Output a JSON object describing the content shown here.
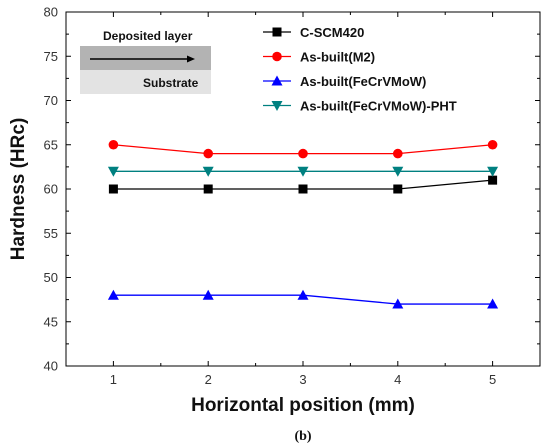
{
  "chart_data": {
    "type": "line",
    "xlabel": "Horizontal position (mm)",
    "ylabel": "Hardness (HRc)",
    "x": [
      1,
      2,
      3,
      4,
      5
    ],
    "xlim": [
      0.5,
      5.5
    ],
    "ylim": [
      40,
      80
    ],
    "xticks": [
      "1",
      "2",
      "3",
      "4",
      "5"
    ],
    "yticks": [
      "40",
      "45",
      "50",
      "55",
      "60",
      "65",
      "70",
      "75",
      "80"
    ],
    "grid": false,
    "legend_position": "top-right",
    "series": [
      {
        "name": "C-SCM420",
        "values": [
          60,
          60,
          60,
          60,
          61
        ],
        "color": "#000000",
        "marker": "square"
      },
      {
        "name": "As-built(M2)",
        "values": [
          65,
          64,
          64,
          64,
          65
        ],
        "color": "#ff0000",
        "marker": "circle"
      },
      {
        "name": "As-built(FeCrVMoW)",
        "values": [
          48,
          48,
          48,
          47,
          47
        ],
        "color": "#0000ff",
        "marker": "triangle-up"
      },
      {
        "name": "As-built(FeCrVMoW)-PHT",
        "values": [
          62,
          62,
          62,
          62,
          62
        ],
        "color": "#008080",
        "marker": "triangle-down"
      }
    ]
  },
  "inset": {
    "top_label": "Deposited layer",
    "bottom_label": "Substrate"
  },
  "caption": "(b)"
}
